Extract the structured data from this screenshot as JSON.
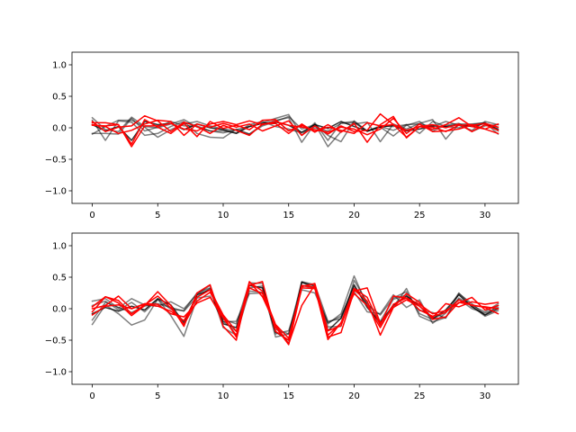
{
  "chart_data": [
    {
      "type": "line",
      "title": "",
      "xlabel": "",
      "ylabel": "",
      "xlim": [
        -1.55,
        32.55
      ],
      "ylim": [
        -1.2,
        1.2
      ],
      "xticks": [
        0,
        5,
        10,
        15,
        20,
        25,
        30
      ],
      "yticks": [
        1.0,
        0.5,
        0.0,
        -0.5,
        -1.0
      ],
      "ytick_labels": [
        "1.0",
        "0.5",
        "0.0",
        "−0.5",
        "−1.0"
      ],
      "grid": false,
      "legend": "none",
      "x": [
        0,
        1,
        2,
        3,
        4,
        5,
        6,
        7,
        8,
        9,
        10,
        11,
        12,
        13,
        14,
        15,
        16,
        17,
        18,
        19,
        20,
        21,
        22,
        23,
        24,
        25,
        26,
        27,
        28,
        29,
        30,
        31
      ],
      "series": [
        {
          "color": "#000000",
          "opacity": 0.5,
          "values": [
            0.16,
            -0.03,
            -0.06,
            0.17,
            0.02,
            0.0,
            0.06,
            0.13,
            0.01,
            -0.05,
            -0.08,
            -0.03,
            0.02,
            0.08,
            0.15,
            0.21,
            -0.12,
            0.08,
            -0.2,
            0.08,
            0.1,
            -0.06,
            0.02,
            -0.04,
            0.05,
            0.06,
            0.02,
            0.1,
            0.04,
            -0.04,
            0.1,
            0.05
          ]
        },
        {
          "color": "#000000",
          "opacity": 0.5,
          "values": [
            0.12,
            -0.2,
            0.11,
            0.09,
            -0.12,
            -0.09,
            0.02,
            0.1,
            -0.09,
            -0.15,
            -0.16,
            -0.02,
            -0.1,
            0.05,
            0.12,
            0.16,
            -0.23,
            0.06,
            -0.3,
            -0.06,
            0.06,
            0.09,
            -0.22,
            0.06,
            -0.02,
            0.07,
            0.13,
            -0.18,
            0.06,
            0.06,
            0.08,
            -0.1
          ]
        },
        {
          "color": "#000000",
          "opacity": 0.5,
          "values": [
            -0.1,
            0.02,
            0.12,
            0.12,
            0.01,
            -0.15,
            -0.03,
            0.06,
            0.1,
            0.03,
            -0.02,
            -0.04,
            -0.1,
            0.03,
            0.1,
            0.18,
            -0.02,
            0.05,
            -0.12,
            -0.22,
            0.11,
            -0.05,
            0.01,
            -0.13,
            0.04,
            0.1,
            -0.05,
            0.04,
            0.07,
            -0.06,
            0.03,
            0.05
          ]
        },
        {
          "color": "#000000",
          "opacity": 0.5,
          "values": [
            -0.09,
            -0.09,
            -0.1,
            0.15,
            -0.05,
            0.01,
            0.1,
            0.03,
            0.03,
            -0.05,
            -0.05,
            -0.08,
            0.05,
            0.1,
            0.02,
            -0.02,
            -0.08,
            0.0,
            -0.05,
            0.07,
            0.08,
            -0.05,
            0.03,
            0.02,
            0.05,
            -0.09,
            0.1,
            0.02,
            0.0,
            0.05,
            0.08,
            -0.05
          ]
        },
        {
          "color": "#000000",
          "opacity": 0.8,
          "values": [
            0.05,
            -0.05,
            0.02,
            -0.2,
            0.1,
            0.05,
            0.07,
            -0.03,
            0.06,
            0.0,
            -0.03,
            -0.09,
            0.02,
            0.07,
            0.09,
            0.04,
            -0.07,
            0.05,
            -0.01,
            0.1,
            0.02,
            -0.05,
            0.01,
            0.04,
            -0.05,
            -0.02,
            0.03,
            0.02,
            0.05,
            0.02,
            0.07,
            -0.02
          ]
        },
        {
          "color": "#ff0000",
          "opacity": 1.0,
          "values": [
            0.08,
            0.08,
            0.05,
            -0.26,
            0.13,
            0.01,
            -0.09,
            0.07,
            -0.14,
            0.1,
            -0.01,
            0.04,
            -0.03,
            0.12,
            0.13,
            -0.05,
            0.04,
            -0.06,
            0.01,
            -0.04,
            -0.09,
            0.08,
            0.03,
            0.05,
            -0.04,
            0.02,
            -0.02,
            0.05,
            0.16,
            0.02,
            -0.02,
            0.06
          ]
        },
        {
          "color": "#ff0000",
          "opacity": 1.0,
          "values": [
            0.1,
            -0.06,
            0.01,
            0.03,
            0.19,
            0.11,
            -0.06,
            0.09,
            0.02,
            -0.09,
            0.04,
            -0.04,
            -0.12,
            0.06,
            0.07,
            -0.09,
            0.06,
            -0.07,
            0.05,
            -0.07,
            0.07,
            -0.23,
            0.05,
            0.18,
            -0.16,
            0.02,
            0.01,
            -0.06,
            0.04,
            0.05,
            -0.02,
            -0.09
          ]
        },
        {
          "color": "#ff0000",
          "opacity": 1.0,
          "values": [
            0.05,
            0.02,
            -0.09,
            -0.04,
            0.06,
            0.12,
            0.1,
            -0.12,
            0.06,
            0.01,
            0.07,
            0.01,
            0.06,
            -0.05,
            0.03,
            0.11,
            -0.12,
            0.03,
            -0.1,
            0.03,
            -0.06,
            -0.04,
            0.22,
            0.05,
            -0.15,
            0.02,
            0.05,
            0.0,
            0.06,
            -0.06,
            0.05,
            -0.04
          ]
        },
        {
          "color": "#ff0000",
          "opacity": 1.0,
          "values": [
            0.04,
            0.03,
            0.05,
            -0.3,
            0.03,
            0.03,
            0.07,
            -0.02,
            -0.05,
            0.06,
            0.1,
            0.05,
            0.11,
            0.05,
            0.1,
            0.04,
            0.01,
            -0.03,
            -0.07,
            0.01,
            -0.02,
            -0.11,
            -0.02,
            0.15,
            -0.09,
            0.06,
            -0.06,
            -0.05,
            -0.02,
            0.04,
            0.07,
            0.01
          ]
        }
      ]
    },
    {
      "type": "line",
      "title": "",
      "xlabel": "",
      "ylabel": "",
      "xlim": [
        -1.55,
        32.55
      ],
      "ylim": [
        -1.2,
        1.2
      ],
      "xticks": [
        0,
        5,
        10,
        15,
        20,
        25,
        30
      ],
      "yticks": [
        1.0,
        0.5,
        0.0,
        -0.5,
        -1.0
      ],
      "ytick_labels": [
        "1.0",
        "0.5",
        "0.0",
        "−0.5",
        "−1.0"
      ],
      "grid": false,
      "legend": "none",
      "x": [
        0,
        1,
        2,
        3,
        4,
        5,
        6,
        7,
        8,
        9,
        10,
        11,
        12,
        13,
        14,
        15,
        16,
        17,
        18,
        19,
        20,
        21,
        22,
        23,
        24,
        25,
        26,
        27,
        28,
        29,
        30,
        31
      ],
      "series": [
        {
          "color": "#000000",
          "opacity": 0.5,
          "values": [
            0.12,
            0.16,
            0.01,
            0.16,
            0.06,
            0.04,
            0.11,
            0.0,
            0.23,
            0.37,
            -0.21,
            -0.2,
            0.24,
            0.25,
            -0.33,
            -0.4,
            0.37,
            0.32,
            -0.24,
            -0.08,
            0.52,
            0.05,
            -0.25,
            0.03,
            0.32,
            -0.12,
            -0.21,
            -0.14,
            0.17,
            0.05,
            -0.05,
            0.08
          ]
        },
        {
          "color": "#000000",
          "opacity": 0.5,
          "values": [
            -0.25,
            0.06,
            -0.08,
            -0.26,
            -0.18,
            0.15,
            -0.11,
            -0.44,
            0.17,
            0.2,
            -0.2,
            -0.36,
            0.33,
            0.36,
            -0.45,
            -0.4,
            0.43,
            0.38,
            -0.2,
            -0.16,
            0.27,
            -0.05,
            -0.08,
            0.22,
            0.02,
            0.14,
            -0.23,
            -0.07,
            0.25,
            0.04,
            -0.12,
            -0.03
          ]
        },
        {
          "color": "#000000",
          "opacity": 0.5,
          "values": [
            -0.18,
            0.1,
            0.02,
            -0.06,
            0.04,
            0.08,
            0.02,
            -0.04,
            0.19,
            0.32,
            -0.3,
            -0.42,
            0.28,
            0.26,
            -0.27,
            -0.55,
            0.42,
            0.32,
            -0.29,
            -0.28,
            0.45,
            0.1,
            -0.2,
            0.15,
            0.22,
            -0.03,
            -0.06,
            -0.15,
            0.24,
            0.08,
            -0.1,
            0.05
          ]
        },
        {
          "color": "#000000",
          "opacity": 0.5,
          "values": [
            0.05,
            0.12,
            -0.02,
            0.1,
            -0.05,
            0.15,
            -0.01,
            -0.03,
            0.25,
            0.33,
            -0.17,
            -0.24,
            0.41,
            0.4,
            -0.4,
            -0.35,
            0.3,
            0.25,
            -0.22,
            -0.12,
            0.35,
            0.07,
            -0.1,
            0.17,
            0.27,
            -0.08,
            -0.17,
            -0.05,
            0.15,
            0.0,
            -0.07,
            0.02
          ]
        },
        {
          "color": "#000000",
          "opacity": 0.8,
          "values": [
            -0.08,
            0.02,
            -0.04,
            0.04,
            -0.02,
            0.16,
            0.06,
            -0.22,
            0.22,
            0.3,
            -0.24,
            -0.3,
            0.37,
            0.33,
            -0.37,
            -0.5,
            0.42,
            0.36,
            -0.35,
            -0.15,
            0.38,
            0.02,
            -0.22,
            0.06,
            0.2,
            0.04,
            -0.16,
            -0.02,
            0.22,
            0.03,
            -0.1,
            0.0
          ]
        },
        {
          "color": "#ff0000",
          "opacity": 1.0,
          "values": [
            0.03,
            0.19,
            0.09,
            -0.11,
            0.05,
            0.27,
            0.05,
            -0.28,
            0.25,
            0.38,
            -0.28,
            -0.5,
            0.42,
            0.28,
            -0.25,
            -0.47,
            0.35,
            0.4,
            -0.35,
            -0.27,
            0.3,
            0.12,
            -0.42,
            0.02,
            0.14,
            0.04,
            -0.14,
            0.08,
            0.03,
            0.11,
            0.07,
            0.1
          ]
        },
        {
          "color": "#ff0000",
          "opacity": 1.0,
          "values": [
            -0.05,
            0.19,
            0.13,
            -0.08,
            0.06,
            0.2,
            0.01,
            -0.25,
            0.12,
            0.26,
            -0.12,
            -0.45,
            0.37,
            0.43,
            -0.36,
            -0.5,
            0.37,
            0.34,
            -0.49,
            -0.22,
            0.24,
            0.05,
            -0.3,
            0.07,
            0.17,
            -0.02,
            -0.12,
            -0.06,
            0.14,
            0.05,
            0.03,
            0.0
          ]
        },
        {
          "color": "#ff0000",
          "opacity": 1.0,
          "values": [
            0.0,
            0.05,
            0.2,
            0.0,
            0.07,
            0.04,
            -0.04,
            -0.19,
            0.18,
            0.3,
            -0.1,
            -0.36,
            0.43,
            0.19,
            -0.26,
            -0.56,
            0.05,
            0.38,
            -0.45,
            -0.38,
            0.28,
            0.33,
            -0.23,
            0.02,
            0.24,
            0.1,
            -0.17,
            -0.13,
            0.1,
            0.06,
            0.02,
            -0.08
          ]
        },
        {
          "color": "#ff0000",
          "opacity": 1.0,
          "values": [
            -0.1,
            0.04,
            0.06,
            0.0,
            0.08,
            0.07,
            -0.08,
            -0.13,
            0.09,
            0.18,
            -0.15,
            -0.42,
            0.33,
            0.24,
            -0.29,
            -0.57,
            0.33,
            0.32,
            -0.42,
            -0.23,
            0.32,
            0.18,
            -0.26,
            0.2,
            0.17,
            0.07,
            -0.08,
            -0.03,
            0.09,
            0.18,
            -0.02,
            0.05
          ]
        }
      ]
    }
  ]
}
